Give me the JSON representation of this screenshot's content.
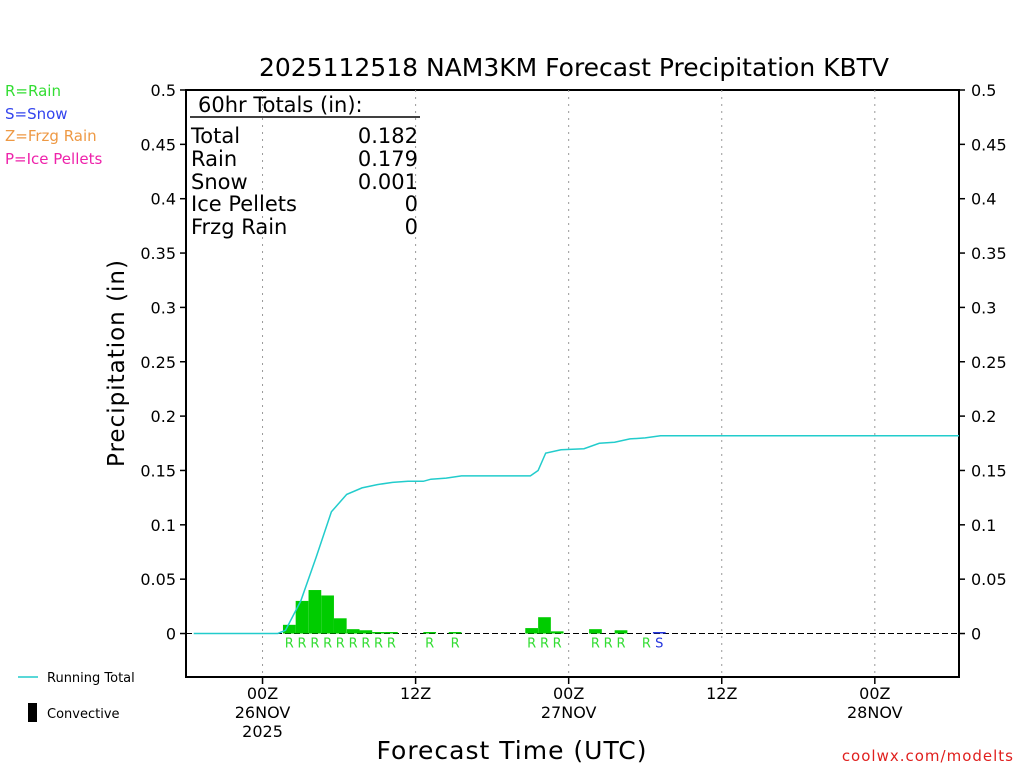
{
  "chart_data": {
    "type": "bar",
    "title": "2025112518 NAM3KM Forecast Precipitation KBTV",
    "ylabel": "Precipitation (in)",
    "xlabel": "Forecast Time (UTC)",
    "ylim": [
      -0.04,
      0.5
    ],
    "yticks": [
      "0",
      "0.05",
      "0.1",
      "0.15",
      "0.2",
      "0.25",
      "0.3",
      "0.35",
      "0.4",
      "0.45",
      "0.5"
    ],
    "xlim_hours": [
      -5,
      45.5
    ],
    "xticks": [
      {
        "hour": 0,
        "lines": [
          "00Z",
          "26NOV",
          "2025"
        ]
      },
      {
        "hour": 10,
        "lines": [
          "12Z"
        ]
      },
      {
        "hour": 20,
        "lines": [
          "00Z",
          "27NOV"
        ]
      },
      {
        "hour": 30,
        "lines": [
          "12Z"
        ]
      },
      {
        "hour": 40,
        "lines": [
          "00Z",
          "28NOV"
        ]
      }
    ],
    "type_legend": [
      {
        "label": "R=Rain",
        "color": "#33dd33"
      },
      {
        "label": "S=Snow",
        "color": "#3344ee"
      },
      {
        "label": "Z=Frzg Rain",
        "color": "#ee9944"
      },
      {
        "label": "P=Ice Pellets",
        "color": "#ee22aa"
      }
    ],
    "totals_box": {
      "header": "60hr Totals (in):",
      "rows": [
        {
          "label": "Total",
          "value": "0.182"
        },
        {
          "label": "Rain",
          "value": "0.179"
        },
        {
          "label": "Snow",
          "value": "0.001"
        },
        {
          "label": "Ice Pellets",
          "value": "0"
        },
        {
          "label": "Frzg Rain",
          "value": "0"
        }
      ]
    },
    "bars": [
      {
        "hour": 1.75,
        "value": 0.008,
        "color": "#00cc00"
      },
      {
        "hour": 2.58,
        "value": 0.03,
        "color": "#00cc00"
      },
      {
        "hour": 3.42,
        "value": 0.04,
        "color": "#00cc00"
      },
      {
        "hour": 4.25,
        "value": 0.035,
        "color": "#00cc00"
      },
      {
        "hour": 5.08,
        "value": 0.014,
        "color": "#00cc00"
      },
      {
        "hour": 5.92,
        "value": 0.004,
        "color": "#00cc00"
      },
      {
        "hour": 6.75,
        "value": 0.003,
        "color": "#00cc00"
      },
      {
        "hour": 7.58,
        "value": 0.001,
        "color": "#00cc00"
      },
      {
        "hour": 8.42,
        "value": 0.0005,
        "color": "#00cc00"
      },
      {
        "hour": 10.92,
        "value": 0.001,
        "color": "#00cc00"
      },
      {
        "hour": 12.58,
        "value": 0.001,
        "color": "#00cc00"
      },
      {
        "hour": 17.58,
        "value": 0.005,
        "color": "#00cc00"
      },
      {
        "hour": 18.42,
        "value": 0.015,
        "color": "#00cc00"
      },
      {
        "hour": 19.25,
        "value": 0.002,
        "color": "#00cc00"
      },
      {
        "hour": 21.75,
        "value": 0.004,
        "color": "#00cc00"
      },
      {
        "hour": 23.42,
        "value": 0.003,
        "color": "#00cc00"
      },
      {
        "hour": 25.92,
        "value": 0.001,
        "color": "#2233dd"
      }
    ],
    "running_total": {
      "label": "Running Total",
      "color": "#22cccc",
      "points": [
        [
          -4.5,
          0
        ],
        [
          1,
          0
        ],
        [
          1.5,
          0.003
        ],
        [
          2.5,
          0.03
        ],
        [
          3.5,
          0.07
        ],
        [
          4.5,
          0.112
        ],
        [
          5.5,
          0.128
        ],
        [
          6.5,
          0.134
        ],
        [
          7.5,
          0.137
        ],
        [
          8.5,
          0.139
        ],
        [
          9.5,
          0.14
        ],
        [
          10.5,
          0.14
        ],
        [
          11.0,
          0.142
        ],
        [
          12.0,
          0.143
        ],
        [
          13.0,
          0.145
        ],
        [
          14.0,
          0.145
        ],
        [
          17.5,
          0.145
        ],
        [
          18.0,
          0.15
        ],
        [
          18.5,
          0.166
        ],
        [
          19.5,
          0.169
        ],
        [
          21.0,
          0.17
        ],
        [
          22.0,
          0.175
        ],
        [
          23.0,
          0.176
        ],
        [
          24.0,
          0.179
        ],
        [
          25.0,
          0.18
        ],
        [
          26.0,
          0.182
        ],
        [
          45.5,
          0.182
        ]
      ]
    },
    "type_markers": [
      {
        "hour": 1.75,
        "letter": "R",
        "color": "#33dd33"
      },
      {
        "hour": 2.58,
        "letter": "R",
        "color": "#33dd33"
      },
      {
        "hour": 3.42,
        "letter": "R",
        "color": "#33dd33"
      },
      {
        "hour": 4.25,
        "letter": "R",
        "color": "#33dd33"
      },
      {
        "hour": 5.08,
        "letter": "R",
        "color": "#33dd33"
      },
      {
        "hour": 5.92,
        "letter": "R",
        "color": "#33dd33"
      },
      {
        "hour": 6.75,
        "letter": "R",
        "color": "#33dd33"
      },
      {
        "hour": 7.58,
        "letter": "R",
        "color": "#33dd33"
      },
      {
        "hour": 8.42,
        "letter": "R",
        "color": "#33dd33"
      },
      {
        "hour": 10.92,
        "letter": "R",
        "color": "#33dd33"
      },
      {
        "hour": 12.58,
        "letter": "R",
        "color": "#33dd33"
      },
      {
        "hour": 17.58,
        "letter": "R",
        "color": "#33dd33"
      },
      {
        "hour": 18.42,
        "letter": "R",
        "color": "#33dd33"
      },
      {
        "hour": 19.25,
        "letter": "R",
        "color": "#33dd33"
      },
      {
        "hour": 21.75,
        "letter": "R",
        "color": "#33dd33"
      },
      {
        "hour": 22.58,
        "letter": "R",
        "color": "#33dd33"
      },
      {
        "hour": 23.42,
        "letter": "R",
        "color": "#33dd33"
      },
      {
        "hour": 25.08,
        "letter": "R",
        "color": "#33dd33"
      },
      {
        "hour": 25.92,
        "letter": "S",
        "color": "#2233dd"
      }
    ],
    "bottom_legend": {
      "running_total_label": "Running Total",
      "convective_label": "Convective"
    },
    "credit": "coolwx.com/modelts"
  }
}
